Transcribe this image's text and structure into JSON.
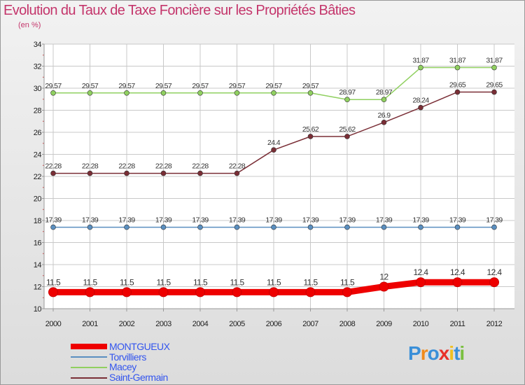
{
  "chart_data": {
    "type": "line",
    "title": "Evolution du Taux de Taxe Foncière sur les Propriétés Bâties",
    "subtitle": "(en %)",
    "categories": [
      "2000",
      "2001",
      "2002",
      "2003",
      "2004",
      "2005",
      "2006",
      "2007",
      "2008",
      "2009",
      "2010",
      "2011",
      "2012"
    ],
    "ylim": [
      10,
      34
    ],
    "yticks": [
      10,
      12,
      14,
      16,
      18,
      20,
      22,
      24,
      26,
      28,
      30,
      32,
      34
    ],
    "series": [
      {
        "name": "MONTGUEUX",
        "color": "#ee0000",
        "values": [
          11.5,
          11.5,
          11.5,
          11.5,
          11.5,
          11.5,
          11.5,
          11.5,
          11.5,
          12,
          12.4,
          12.4,
          12.4
        ],
        "labels": [
          "11.5",
          "11.5",
          "11.5",
          "11.5",
          "11.5",
          "11.5",
          "11.5",
          "11.5",
          "11.5",
          "12",
          "12.4",
          "12.4",
          "12.4"
        ]
      },
      {
        "name": "Torvilliers",
        "color": "#5a8fc0",
        "values": [
          17.39,
          17.39,
          17.39,
          17.39,
          17.39,
          17.39,
          17.39,
          17.39,
          17.39,
          17.39,
          17.39,
          17.39,
          17.39
        ],
        "labels": [
          "17.39",
          "17.39",
          "17.39",
          "17.39",
          "17.39",
          "17.39",
          "17.39",
          "17.39",
          "17.39",
          "17.39",
          "17.39",
          "17.39",
          "17.39"
        ]
      },
      {
        "name": "Macey",
        "color": "#90d060",
        "values": [
          29.57,
          29.57,
          29.57,
          29.57,
          29.57,
          29.57,
          29.57,
          29.57,
          28.97,
          28.97,
          31.87,
          31.87,
          31.87
        ],
        "labels": [
          "29.57",
          "29.57",
          "29.57",
          "29.57",
          "29.57",
          "29.57",
          "29.57",
          "29.57",
          "28.97",
          "28.97",
          "31.87",
          "31.87",
          "31.87"
        ]
      },
      {
        "name": "Saint-Germain",
        "color": "#7a2e36",
        "values": [
          22.28,
          22.28,
          22.28,
          22.28,
          22.28,
          22.28,
          24.4,
          25.62,
          25.62,
          26.9,
          28.24,
          29.65,
          29.65
        ],
        "labels": [
          "22.28",
          "22.28",
          "22.28",
          "22.28",
          "22.28",
          "22.28",
          "24.4",
          "25.62",
          "25.62",
          "26.9",
          "28.24",
          "29.65",
          "29.65"
        ]
      }
    ],
    "legend_position": "bottom-left"
  },
  "legend": {
    "items": [
      {
        "label": "MONTGUEUX",
        "color": "#3355ee"
      },
      {
        "label": "Torvilliers",
        "color": "#3355ee"
      },
      {
        "label": "Macey",
        "color": "#3355ee"
      },
      {
        "label": "Saint-Germain",
        "color": "#3355ee"
      }
    ]
  },
  "logo": {
    "letters": [
      "P",
      "r",
      "o",
      "x",
      "i",
      "t",
      "i"
    ],
    "colors": [
      "#3a8fd8",
      "#f08a1a",
      "#3a8fd8",
      "#e8302a",
      "#f0c020",
      "#3a8fd8",
      "#7ac040"
    ]
  }
}
